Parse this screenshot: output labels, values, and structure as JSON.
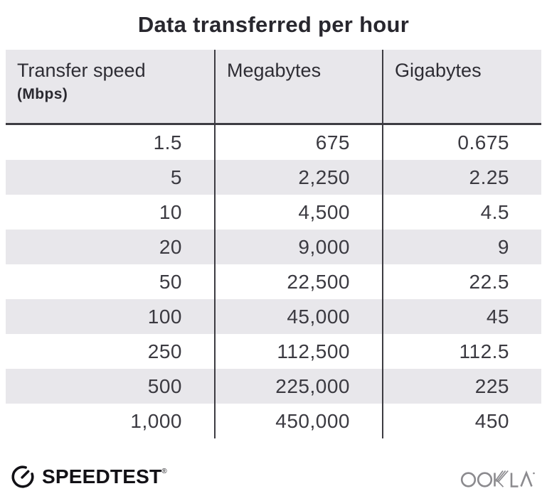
{
  "title": "Data transferred per hour",
  "table": {
    "columns": [
      {
        "label": "Transfer speed",
        "sublabel": "(Mbps)"
      },
      {
        "label": "Megabytes"
      },
      {
        "label": "Gigabytes"
      }
    ],
    "rows": [
      [
        "1.5",
        "675",
        "0.675"
      ],
      [
        "5",
        "2,250",
        "2.25"
      ],
      [
        "10",
        "4,500",
        "4.5"
      ],
      [
        "20",
        "9,000",
        "9"
      ],
      [
        "50",
        "22,500",
        "22.5"
      ],
      [
        "100",
        "45,000",
        "45"
      ],
      [
        "250",
        "112,500",
        "112.5"
      ],
      [
        "500",
        "225,000",
        "225"
      ],
      [
        "1,000",
        "450,000",
        "450"
      ]
    ]
  },
  "footer": {
    "speedtest_label": "SPEEDTEST",
    "speedtest_trademark": "®",
    "ookla_label": "OOKLA"
  },
  "colors": {
    "stripe_gray": "#e8e7eb",
    "divider_dark": "#3d3c42",
    "text_dark": "#2e2d34",
    "speedtest_black": "#121116",
    "ookla_gray": "#8b8a8e"
  },
  "chart_data": {
    "type": "table",
    "title": "Data transferred per hour",
    "columns": [
      "Transfer speed (Mbps)",
      "Megabytes",
      "Gigabytes"
    ],
    "rows": [
      [
        1.5,
        675,
        0.675
      ],
      [
        5,
        2250,
        2.25
      ],
      [
        10,
        4500,
        4.5
      ],
      [
        20,
        9000,
        9
      ],
      [
        50,
        22500,
        22.5
      ],
      [
        100,
        45000,
        45
      ],
      [
        250,
        112500,
        112.5
      ],
      [
        500,
        225000,
        225
      ],
      [
        1000,
        450000,
        450
      ]
    ],
    "layout": {
      "striped_rows": true,
      "stripe_color": "#e8e7eb",
      "header_background": "#e8e7eb",
      "column_separators": true
    }
  }
}
